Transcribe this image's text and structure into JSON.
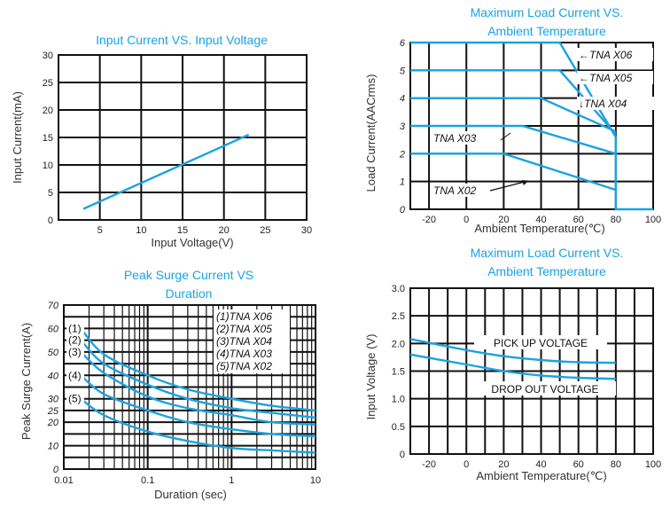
{
  "chart_data": [
    {
      "type": "line",
      "title": "Input Current VS. Input Voltage",
      "xlabel": "Input  Voltage(V)",
      "ylabel": "Input Current(mA)",
      "xlim": [
        0,
        30
      ],
      "ylim": [
        0,
        30
      ],
      "x_ticks": [
        "5",
        "10",
        "15",
        "20",
        "25",
        "30"
      ],
      "y_ticks": [
        "0",
        "5",
        "10",
        "15",
        "20",
        "25",
        "30"
      ],
      "grid": true,
      "series": [
        {
          "x": [
            3,
            23
          ],
          "y": [
            2,
            15.5
          ]
        }
      ]
    },
    {
      "type": "line",
      "title": [
        "Maximum Load Current VS.",
        "Ambient Temperature"
      ],
      "xlabel": "Ambient Temperature(℃)",
      "ylabel": "Load Current(AACrms)",
      "xlim": [
        -30,
        100
      ],
      "ylim": [
        0,
        6
      ],
      "x_ticks": [
        "-20",
        "0",
        "20",
        "40",
        "60",
        "80",
        "100"
      ],
      "y_ticks": [
        "0",
        "1",
        "2",
        "3",
        "4",
        "5",
        "6"
      ],
      "grid": true,
      "series": [
        {
          "name": "TNA X06",
          "x": [
            -30,
            50,
            80
          ],
          "y": [
            6,
            6,
            2.6
          ]
        },
        {
          "name": "TNA X05",
          "x": [
            -30,
            50,
            80
          ],
          "y": [
            5,
            5,
            2.7
          ]
        },
        {
          "name": "TNA X04",
          "x": [
            -30,
            40,
            80
          ],
          "y": [
            4,
            4,
            2.8
          ]
        },
        {
          "name": "TNA X03",
          "x": [
            -30,
            30,
            80
          ],
          "y": [
            3,
            3,
            2.0
          ]
        },
        {
          "name": "TNA X02",
          "x": [
            -30,
            20,
            80
          ],
          "y": [
            2,
            2,
            0.7
          ]
        }
      ],
      "limit_line": {
        "x": [
          80,
          80,
          100
        ],
        "y": [
          2.6,
          0,
          0
        ]
      },
      "annotations": [
        "←TNA X06",
        "←TNA X05",
        "↓TNA X04",
        "TNA X03",
        "TNA X02"
      ]
    },
    {
      "type": "line",
      "title": [
        "Peak Surge Current VS",
        "Duration"
      ],
      "xlabel": "Duration (sec)",
      "ylabel": "Peak Surge Current(A)",
      "x_scale": "log",
      "xlim": [
        0.01,
        10
      ],
      "ylim": [
        0,
        70
      ],
      "x_ticks": [
        "0.01",
        "0.1",
        "1",
        "10"
      ],
      "y_ticks": [
        "0",
        "10",
        "20",
        "25",
        "30",
        "40",
        "50",
        "60",
        "70"
      ],
      "grid": true,
      "legend": [
        "(1)TNA X06",
        "(2)TNA X05",
        "(3)TNA X04",
        "(4)TNA X03",
        "(5)TNA X02"
      ],
      "curve_labels": [
        "(1)",
        "(2)",
        "(3)",
        "(4)",
        "(5)"
      ],
      "series": [
        {
          "name": "(1)TNA X06",
          "x": [
            0.016,
            0.03,
            0.1,
            0.3,
            1,
            3,
            10
          ],
          "y": [
            60,
            49,
            40,
            34,
            30,
            27,
            25
          ]
        },
        {
          "name": "(2)TNA X05",
          "x": [
            0.016,
            0.03,
            0.1,
            0.3,
            1,
            3,
            10
          ],
          "y": [
            55,
            45,
            36,
            30,
            26,
            24,
            22
          ]
        },
        {
          "name": "(3)TNA X04",
          "x": [
            0.016,
            0.03,
            0.1,
            0.3,
            1,
            3,
            10
          ],
          "y": [
            50,
            41,
            31,
            26,
            23,
            20,
            19
          ]
        },
        {
          "name": "(4)TNA X03",
          "x": [
            0.016,
            0.03,
            0.1,
            0.3,
            1,
            3,
            10
          ],
          "y": [
            40,
            32,
            25,
            20,
            17,
            15,
            14
          ]
        },
        {
          "name": "(5)TNA X02",
          "x": [
            0.016,
            0.03,
            0.1,
            0.3,
            1,
            3,
            10
          ],
          "y": [
            30,
            23,
            16,
            12,
            9,
            8,
            7
          ]
        }
      ]
    },
    {
      "type": "line",
      "title": [
        "Maximum Load Current VS.",
        "Ambient Temperature"
      ],
      "xlabel": "Ambient Temperature(℃)",
      "ylabel": "Input Voltage (V)",
      "xlim": [
        -30,
        100
      ],
      "ylim": [
        0,
        3.0
      ],
      "x_ticks": [
        "-20",
        "0",
        "20",
        "40",
        "60",
        "80",
        "100"
      ],
      "y_ticks": [
        "0",
        "0.5",
        "1.0",
        "1.5",
        "2.0",
        "2.5",
        "3.0"
      ],
      "grid": true,
      "series": [
        {
          "name": "PICK UP VOLTAGE",
          "x": [
            -30,
            0,
            20,
            40,
            60,
            80
          ],
          "y": [
            2.08,
            1.88,
            1.77,
            1.7,
            1.66,
            1.65
          ]
        },
        {
          "name": "DROP OUT VOLTAGE",
          "x": [
            -30,
            0,
            20,
            40,
            60,
            80
          ],
          "y": [
            1.8,
            1.62,
            1.5,
            1.42,
            1.38,
            1.36
          ]
        }
      ]
    }
  ]
}
